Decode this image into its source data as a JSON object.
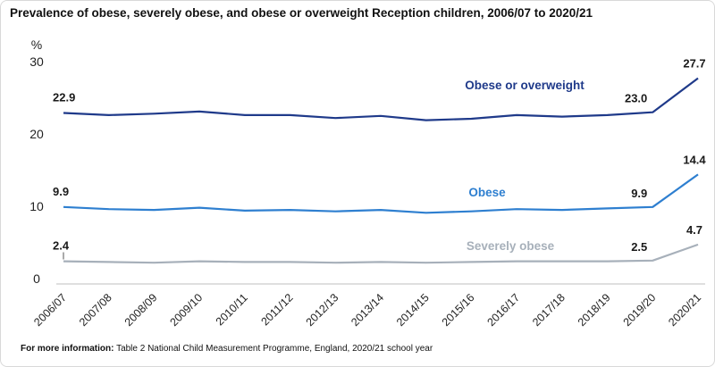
{
  "chart_data": {
    "type": "line",
    "title": "Prevalence of obese, severely obese, and obese or overweight Reception children, 2006/07 to 2020/21",
    "ylabel": "%",
    "ylim": [
      0,
      30
    ],
    "yticks": [
      0,
      10,
      20,
      30
    ],
    "grid": false,
    "legend": "inline labels next to lines",
    "x": [
      "2006/07",
      "2007/08",
      "2008/09",
      "2009/10",
      "2010/11",
      "2011/12",
      "2012/13",
      "2013/14",
      "2014/15",
      "2015/16",
      "2016/17",
      "2017/18",
      "2018/19",
      "2019/20",
      "2020/21"
    ],
    "series": [
      {
        "name": "Obese or overweight",
        "color": "#1f3a8a",
        "values": [
          22.9,
          22.6,
          22.8,
          23.1,
          22.6,
          22.6,
          22.2,
          22.5,
          21.9,
          22.1,
          22.6,
          22.4,
          22.6,
          23.0,
          27.7
        ],
        "data_labels": [
          {
            "index": 0,
            "text": "22.9"
          },
          {
            "index": 13,
            "text": "23.0"
          },
          {
            "index": 14,
            "text": "27.7"
          }
        ]
      },
      {
        "name": "Obese",
        "color": "#2e7fd0",
        "values": [
          9.9,
          9.6,
          9.5,
          9.8,
          9.4,
          9.5,
          9.3,
          9.5,
          9.1,
          9.3,
          9.6,
          9.5,
          9.7,
          9.9,
          14.4
        ],
        "data_labels": [
          {
            "index": 0,
            "text": "9.9"
          },
          {
            "index": 13,
            "text": "9.9"
          },
          {
            "index": 14,
            "text": "14.4"
          }
        ]
      },
      {
        "name": "Severely obese",
        "color": "#a7b0ba",
        "values": [
          2.4,
          2.3,
          2.2,
          2.4,
          2.3,
          2.3,
          2.2,
          2.3,
          2.2,
          2.3,
          2.4,
          2.4,
          2.4,
          2.5,
          4.7
        ],
        "data_labels": [
          {
            "index": 0,
            "text": "2.4"
          },
          {
            "index": 13,
            "text": "2.5"
          },
          {
            "index": 14,
            "text": "4.7"
          }
        ]
      }
    ]
  },
  "footer": {
    "label": "For more information:",
    "text": "Table 2 National Child Measurement Programme, England, 2020/21 school year"
  }
}
